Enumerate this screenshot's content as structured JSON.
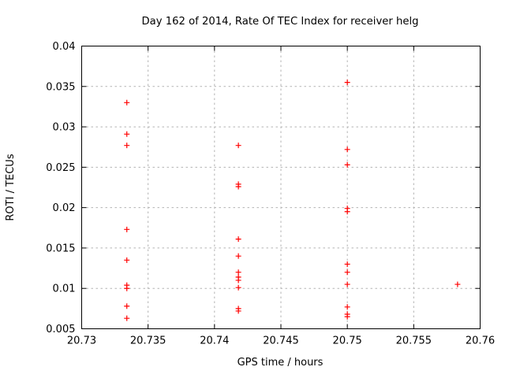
{
  "chart_data": {
    "type": "scatter",
    "title": "Day 162 of 2014, Rate Of TEC Index for receiver helg",
    "xlabel": "GPS time / hours",
    "ylabel": "ROTI / TECUs",
    "xlim": [
      20.73,
      20.76
    ],
    "ylim": [
      0.005,
      0.04
    ],
    "grid": true,
    "legend_position": "none",
    "marker_style": "plus",
    "x_ticks": [
      {
        "v": 20.73,
        "label": "20.73"
      },
      {
        "v": 20.735,
        "label": "20.735"
      },
      {
        "v": 20.74,
        "label": "20.74"
      },
      {
        "v": 20.745,
        "label": "20.745"
      },
      {
        "v": 20.75,
        "label": "20.75"
      },
      {
        "v": 20.755,
        "label": "20.755"
      },
      {
        "v": 20.76,
        "label": "20.76"
      }
    ],
    "y_ticks": [
      {
        "v": 0.005,
        "label": "0.005"
      },
      {
        "v": 0.01,
        "label": "0.01"
      },
      {
        "v": 0.015,
        "label": "0.015"
      },
      {
        "v": 0.02,
        "label": "0.02"
      },
      {
        "v": 0.025,
        "label": "0.025"
      },
      {
        "v": 0.03,
        "label": "0.03"
      },
      {
        "v": 0.035,
        "label": "0.035"
      },
      {
        "v": 0.04,
        "label": "0.04"
      }
    ],
    "series": [
      {
        "name": "ROTI",
        "color": "#ff0000",
        "points": [
          [
            20.7334,
            0.033
          ],
          [
            20.7334,
            0.0291
          ],
          [
            20.7334,
            0.0277
          ],
          [
            20.7334,
            0.0173
          ],
          [
            20.7334,
            0.0135
          ],
          [
            20.7334,
            0.0104
          ],
          [
            20.7334,
            0.01
          ],
          [
            20.7334,
            0.0078
          ],
          [
            20.7334,
            0.0063
          ],
          [
            20.7418,
            0.0277
          ],
          [
            20.7418,
            0.0229
          ],
          [
            20.7418,
            0.0226
          ],
          [
            20.7418,
            0.0161
          ],
          [
            20.7418,
            0.014
          ],
          [
            20.7418,
            0.012
          ],
          [
            20.7418,
            0.0114
          ],
          [
            20.7418,
            0.011
          ],
          [
            20.7418,
            0.0101
          ],
          [
            20.7418,
            0.0075
          ],
          [
            20.7418,
            0.0072
          ],
          [
            20.75,
            0.0355
          ],
          [
            20.75,
            0.0272
          ],
          [
            20.75,
            0.0253
          ],
          [
            20.75,
            0.0199
          ],
          [
            20.75,
            0.0195
          ],
          [
            20.75,
            0.013
          ],
          [
            20.75,
            0.012
          ],
          [
            20.75,
            0.0105
          ],
          [
            20.75,
            0.0077
          ],
          [
            20.75,
            0.0068
          ],
          [
            20.75,
            0.0065
          ],
          [
            20.7583,
            0.0105
          ]
        ]
      }
    ],
    "colors": {
      "marker": "#ff0000",
      "grid": "#b3b3b3",
      "axis": "#000000",
      "background": "#ffffff"
    }
  }
}
